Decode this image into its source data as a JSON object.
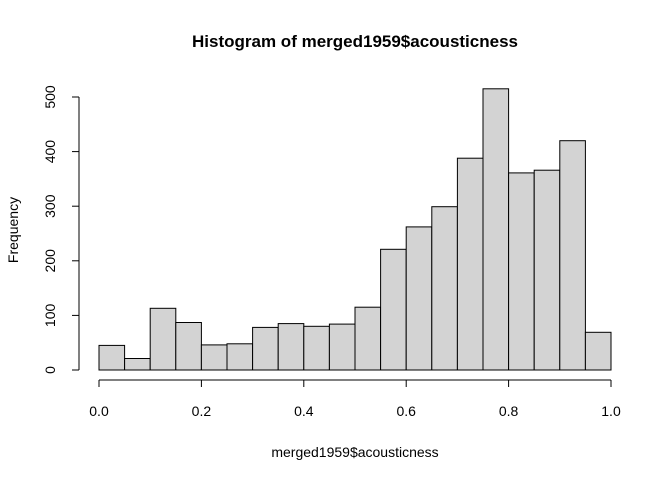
{
  "chart_data": {
    "type": "bar",
    "title": "Histogram of merged1959$acousticness",
    "xlabel": "merged1959$acousticness",
    "ylabel": "Frequency",
    "bin_edges": [
      0.0,
      0.05,
      0.1,
      0.15,
      0.2,
      0.25,
      0.3,
      0.35,
      0.4,
      0.45,
      0.5,
      0.55,
      0.6,
      0.65,
      0.7,
      0.75,
      0.8,
      0.85,
      0.9,
      0.95,
      1.0
    ],
    "values": [
      45,
      21,
      113,
      87,
      46,
      48,
      78,
      85,
      80,
      84,
      115,
      221,
      262,
      299,
      388,
      515,
      361,
      366,
      420,
      69
    ],
    "xlim": [
      0,
      1
    ],
    "ylim": [
      0,
      515
    ],
    "x_ticks": [
      "0.0",
      "0.2",
      "0.4",
      "0.6",
      "0.8",
      "1.0"
    ],
    "x_tick_values": [
      0,
      0.2,
      0.4,
      0.6,
      0.8,
      1.0
    ],
    "y_ticks": [
      "0",
      "100",
      "200",
      "300",
      "400",
      "500"
    ],
    "y_tick_values": [
      0,
      100,
      200,
      300,
      400,
      500
    ],
    "bar_color": "#d3d3d3",
    "grid": false
  }
}
